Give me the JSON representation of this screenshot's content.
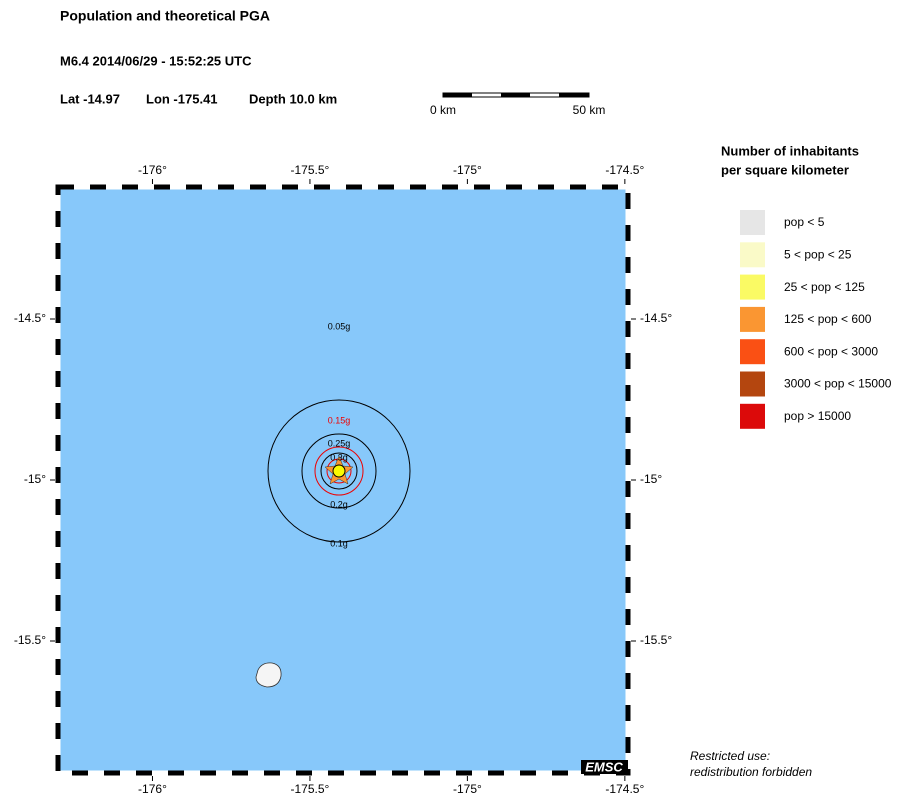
{
  "header": {
    "title": "Population and theoretical PGA",
    "event": "M6.4  2014/06/29 - 15:52:25 UTC",
    "lat": "Lat -14.97",
    "lon": "Lon -175.41",
    "depth": "Depth  10.0 km"
  },
  "scale_bar": {
    "labels": [
      "0 km",
      "50 km"
    ]
  },
  "map": {
    "lonlim": [
      -176.3,
      -174.49
    ],
    "latlim": [
      -15.91,
      -14.09
    ],
    "lon_ticks": [
      {
        "value": -176,
        "label": "-176°"
      },
      {
        "value": -175.5,
        "label": "-175.5°"
      },
      {
        "value": -175,
        "label": "-175°"
      },
      {
        "value": -174.5,
        "label": "-174.5°"
      }
    ],
    "lat_ticks": [
      {
        "value": -14.5,
        "label": "-14.5°"
      },
      {
        "value": -15,
        "label": "-15°"
      },
      {
        "value": -15.5,
        "label": "-15.5°"
      }
    ],
    "contour_labels": [
      "0.05g",
      "0.15g",
      "0.25g",
      "0.3g",
      "0.2g",
      "0.1g"
    ],
    "logo": "EMSC"
  },
  "legend": {
    "title": [
      "Number of inhabitants",
      "per square kilometer"
    ],
    "items": [
      {
        "label": "pop < 5",
        "color": "#e6e6e6"
      },
      {
        "label": "5 < pop < 25",
        "color": "#fafac8"
      },
      {
        "label": "25 < pop < 125",
        "color": "#fafa64"
      },
      {
        "label": "125 < pop < 600",
        "color": "#fa9632"
      },
      {
        "label": "600 < pop < 3000",
        "color": "#fa5014"
      },
      {
        "label": "3000 < pop < 15000",
        "color": "#b4460f"
      },
      {
        "label": "pop > 15000",
        "color": "#dc0a0a"
      }
    ]
  },
  "footer": {
    "lines": [
      "Restricted use:",
      "redistribution forbidden"
    ]
  }
}
